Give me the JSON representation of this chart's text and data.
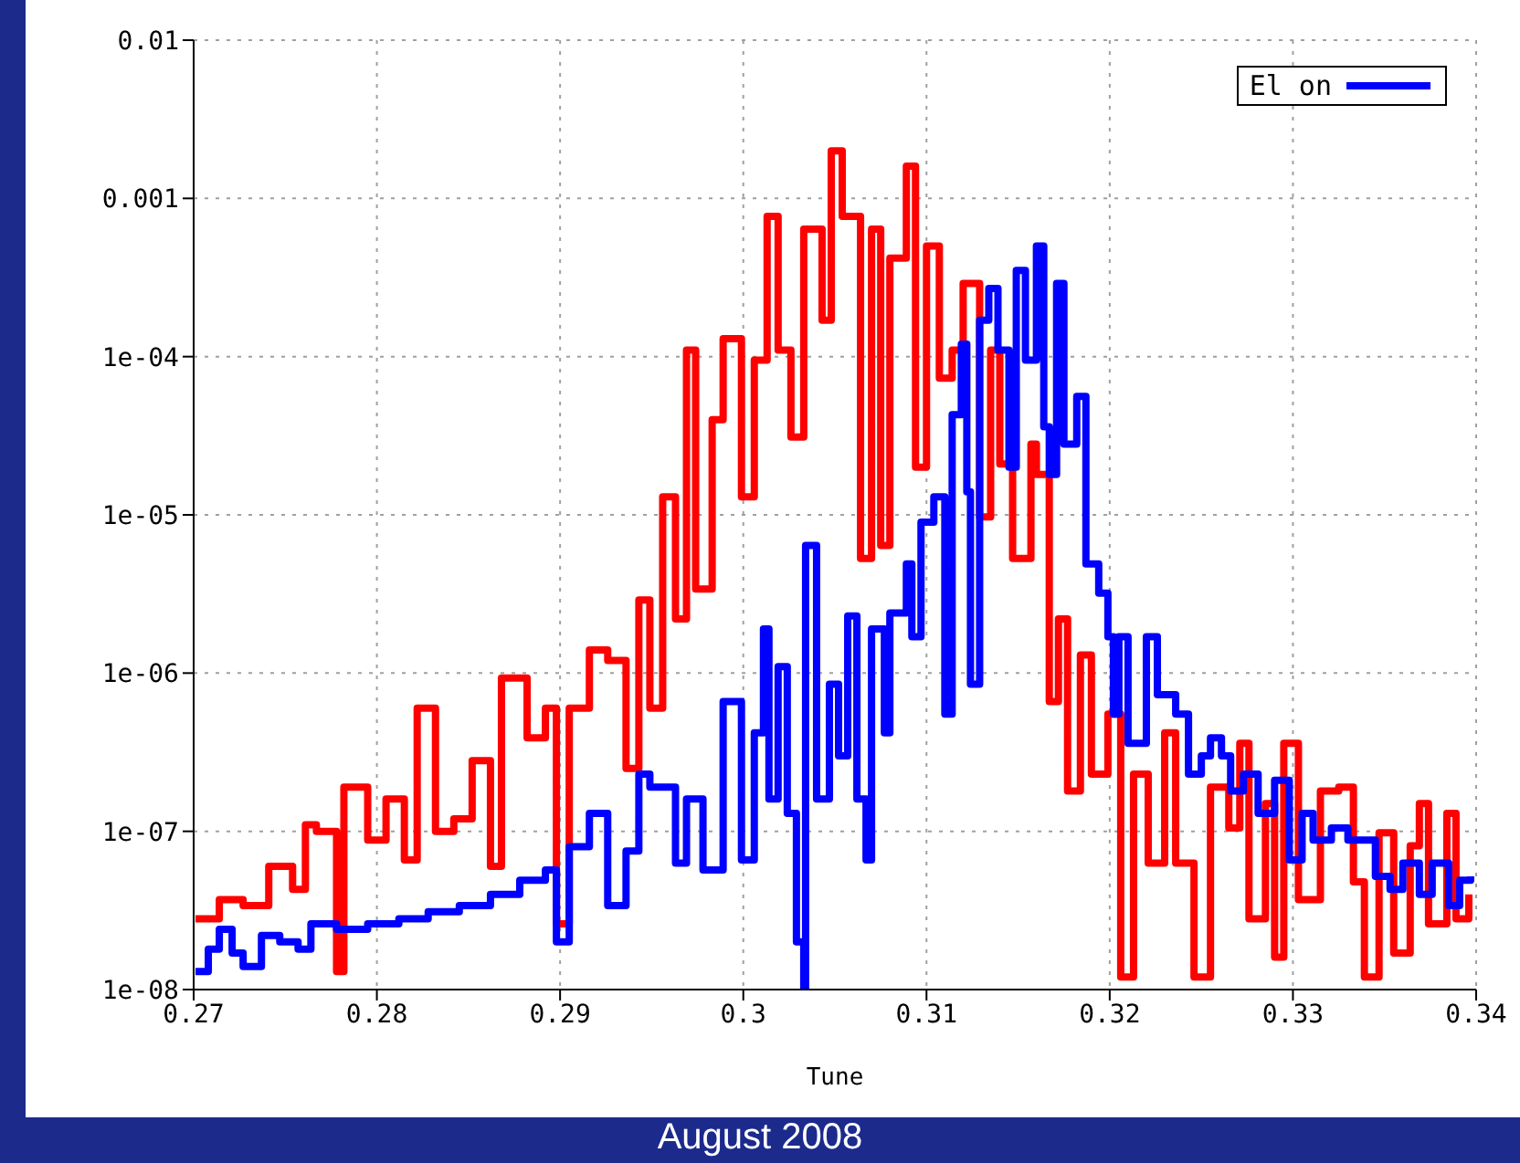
{
  "chart_data": {
    "type": "step",
    "xlabel": "Tune",
    "annotations": [
      "August 2008"
    ],
    "log": true,
    "grid": true,
    "legend": "top right",
    "xlim": [
      0.27,
      0.34
    ],
    "xticks": [
      0.27,
      0.28,
      0.29,
      0.3,
      0.31,
      0.32,
      0.33,
      0.34
    ],
    "ylim": [
      1e-08,
      0.01
    ],
    "yticks": [
      {
        "value": 1e-08,
        "label": "1e-08"
      },
      {
        "value": 1e-07,
        "label": "1e-07"
      },
      {
        "value": 1e-06,
        "label": "1e-06"
      },
      {
        "value": 1e-05,
        "label": "1e-05"
      },
      {
        "value": 0.0001,
        "label": "1e-04"
      },
      0.001,
      0.01
    ],
    "series": [
      {
        "color": "#ff0000",
        "x": [
          0.2701,
          0.2714,
          0.2727,
          0.2741,
          0.2754,
          0.2761,
          0.2767,
          0.2778,
          0.2782,
          0.2795,
          0.2805,
          0.2815,
          0.2822,
          0.2832,
          0.2842,
          0.2852,
          0.2862,
          0.2868,
          0.2882,
          0.2892,
          0.2898,
          0.2905,
          0.2916,
          0.2926,
          0.2936,
          0.2943,
          0.2949,
          0.2956,
          0.2963,
          0.2969,
          0.2974,
          0.2983,
          0.2989,
          0.2999,
          0.3006,
          0.3013,
          0.3019,
          0.3026,
          0.3033,
          0.3043,
          0.3048,
          0.3054,
          0.3064,
          0.307,
          0.3075,
          0.308,
          0.3089,
          0.3094,
          0.31,
          0.3107,
          0.3114,
          0.312,
          0.3129,
          0.3135,
          0.314,
          0.3147,
          0.3157,
          0.316,
          0.3167,
          0.3172,
          0.3177,
          0.3184,
          0.319,
          0.3199,
          0.3206,
          0.3213,
          0.3221,
          0.323,
          0.3236,
          0.3246,
          0.3255,
          0.3265,
          0.3271,
          0.3276,
          0.3285,
          0.329,
          0.3295,
          0.3303,
          0.3315,
          0.3325,
          0.3333,
          0.3339,
          0.3347,
          0.3355,
          0.3364,
          0.3369,
          0.3374,
          0.3384,
          0.3389,
          0.3396
        ],
        "values": [
          2.8e-08,
          3.7e-08,
          3.4e-08,
          6e-08,
          4.3e-08,
          1.1e-07,
          1e-07,
          1.3e-08,
          1.9e-07,
          8.8e-08,
          1.6e-07,
          6.6e-08,
          6e-07,
          1e-07,
          1.2e-07,
          2.8e-07,
          6e-08,
          9.3e-07,
          3.9e-07,
          6e-07,
          2.6e-08,
          6e-07,
          1.4e-06,
          1.2e-06,
          2.5e-07,
          2.9e-06,
          6e-07,
          1.3e-05,
          2.2e-06,
          0.00011,
          3.4e-06,
          4e-05,
          0.00013,
          1.3e-05,
          9.5e-05,
          0.00077,
          0.00011,
          3.1e-05,
          0.00064,
          0.00017,
          0.002,
          0.00077,
          5.3e-06,
          0.00064,
          6.4e-06,
          0.00042,
          0.0016,
          2e-05,
          0.0005,
          7.3e-05,
          0.00011,
          0.00029,
          9.7e-06,
          0.00011,
          2.1e-05,
          5.3e-06,
          2.8e-05,
          1.8e-05,
          6.6e-07,
          2.2e-06,
          1.8e-07,
          1.3e-06,
          2.3e-07,
          5.5e-07,
          1.2e-08,
          2.3e-07,
          6.3e-08,
          4.2e-07,
          6.3e-08,
          1.2e-08,
          1.9e-07,
          1.05e-07,
          3.6e-07,
          2.8e-08,
          1.5e-07,
          1.6e-08,
          3.6e-07,
          3.7e-08,
          1.8e-07,
          1.9e-07,
          4.8e-08,
          1.2e-08,
          9.8e-08,
          1.7e-08,
          8.1e-08,
          1.5e-07,
          2.6e-08,
          1.3e-07,
          2.8e-08,
          4e-08
        ]
      },
      {
        "name": "El on",
        "color": "#0000ff",
        "x": [
          0.2701,
          0.2708,
          0.2714,
          0.2721,
          0.2727,
          0.2737,
          0.2747,
          0.2757,
          0.2764,
          0.2778,
          0.2795,
          0.2812,
          0.2828,
          0.2845,
          0.2862,
          0.2878,
          0.2892,
          0.2898,
          0.2905,
          0.2916,
          0.2926,
          0.2936,
          0.2943,
          0.2949,
          0.2963,
          0.2969,
          0.2978,
          0.2989,
          0.2999,
          0.3006,
          0.3011,
          0.3014,
          0.3019,
          0.3024,
          0.3029,
          0.3033,
          0.3034,
          0.304,
          0.3047,
          0.3052,
          0.3057,
          0.3062,
          0.3067,
          0.307,
          0.3077,
          0.308,
          0.3089,
          0.3092,
          0.3097,
          0.3104,
          0.311,
          0.3114,
          0.3119,
          0.3122,
          0.3124,
          0.3129,
          0.3134,
          0.3139,
          0.3145,
          0.3149,
          0.3154,
          0.316,
          0.3164,
          0.3167,
          0.3171,
          0.3175,
          0.3182,
          0.3187,
          0.3194,
          0.3199,
          0.3202,
          0.3205,
          0.321,
          0.322,
          0.3226,
          0.3236,
          0.3243,
          0.325,
          0.3255,
          0.3261,
          0.3266,
          0.3273,
          0.3281,
          0.329,
          0.3298,
          0.3305,
          0.3311,
          0.3321,
          0.333,
          0.334,
          0.3345,
          0.3353,
          0.336,
          0.3369,
          0.3376,
          0.3385,
          0.3391,
          0.3397
        ],
        "values": [
          1.3e-08,
          1.8e-08,
          2.4e-08,
          1.7e-08,
          1.4e-08,
          2.2e-08,
          2e-08,
          1.8e-08,
          2.6e-08,
          2.4e-08,
          2.6e-08,
          2.8e-08,
          3.1e-08,
          3.4e-08,
          4e-08,
          4.9e-08,
          5.7e-08,
          2e-08,
          8e-08,
          1.3e-07,
          3.4e-08,
          7.5e-08,
          2.3e-07,
          1.9e-07,
          6.3e-08,
          1.6e-07,
          5.7e-08,
          6.6e-07,
          6.6e-08,
          4.2e-07,
          1.9e-06,
          1.6e-07,
          1.1e-06,
          1.3e-07,
          2e-08,
          1e-08,
          6.4e-06,
          1.6e-07,
          8.5e-07,
          3e-07,
          2.3e-06,
          1.6e-07,
          6.6e-08,
          1.9e-06,
          4.2e-07,
          2.4e-06,
          4.9e-06,
          1.7e-06,
          9e-06,
          1.3e-05,
          5.5e-07,
          4.3e-05,
          0.00012,
          1.4e-05,
          8.5e-07,
          0.00017,
          0.00027,
          0.00011,
          2e-05,
          0.00035,
          9.5e-05,
          0.0005,
          3.6e-05,
          1.8e-05,
          0.00029,
          2.8e-05,
          5.6e-05,
          4.9e-06,
          3.2e-06,
          1.7e-06,
          5.5e-07,
          1.7e-06,
          3.6e-07,
          1.7e-06,
          7.3e-07,
          5.5e-07,
          2.3e-07,
          3e-07,
          3.9e-07,
          3e-07,
          1.8e-07,
          2.3e-07,
          1.3e-07,
          2.1e-07,
          6.6e-08,
          1.3e-07,
          8.8e-08,
          1.05e-07,
          8.8e-08,
          8.8e-08,
          5.2e-08,
          4.3e-08,
          6.3e-08,
          4e-08,
          6.3e-08,
          3.4e-08,
          4.9e-08,
          5.2e-08
        ]
      }
    ]
  }
}
